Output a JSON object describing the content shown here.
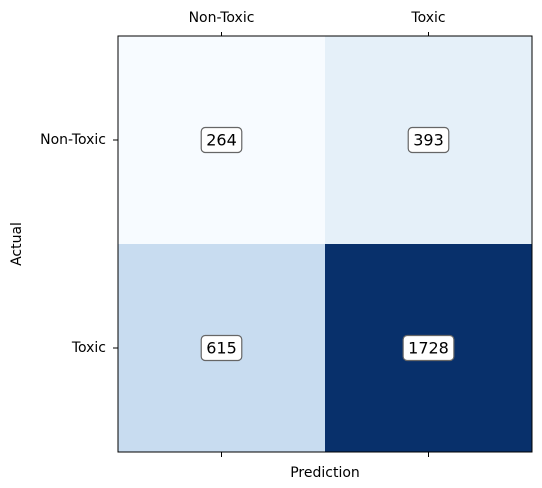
{
  "chart_data": {
    "type": "heatmap",
    "title": "",
    "xlabel": "Prediction",
    "ylabel": "Actual",
    "x_categories": [
      "Non-Toxic",
      "Toxic"
    ],
    "y_categories": [
      "Non-Toxic",
      "Toxic"
    ],
    "values": [
      [
        264,
        393
      ],
      [
        615,
        1728
      ]
    ],
    "x_tick_position": "top",
    "colormap": "Blues",
    "color_range": {
      "min_color": "#f7fbff",
      "max_color": "#08306b"
    },
    "grid": false,
    "legend": "none"
  }
}
